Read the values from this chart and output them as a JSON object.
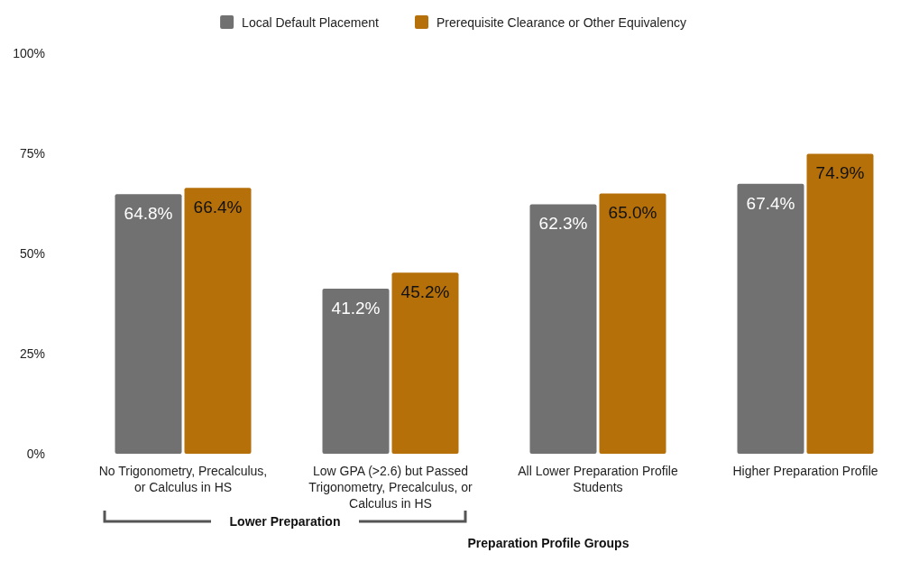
{
  "chart_data": {
    "type": "bar",
    "xlabel": "Preparation Profile Groups",
    "categories": [
      "No Trigonometry, Precalculus, or Calculus in HS",
      "Low GPA (>2.6) but Passed Trigonometry, Precalculus, or Calculus in HS",
      "All Lower Preparation Profile Students",
      "Higher Preparation Profile"
    ],
    "series": [
      {
        "name": "Local Default Placement",
        "color": "#717171",
        "values": [
          64.8,
          41.2,
          62.3,
          67.4
        ],
        "value_labels": [
          "64.8%",
          "41.2%",
          "62.3%",
          "67.4%"
        ]
      },
      {
        "name": "Prerequisite Clearance or Other Equivalency",
        "color": "#b5700a",
        "values": [
          66.4,
          45.2,
          65.0,
          74.9
        ],
        "value_labels": [
          "66.4%",
          "45.2%",
          "65.0%",
          "74.9%"
        ]
      }
    ],
    "ylim": [
      0,
      100
    ],
    "yticks": [
      {
        "value": 0,
        "label": "0%"
      },
      {
        "value": 25,
        "label": "25%"
      },
      {
        "value": 50,
        "label": "50%"
      },
      {
        "value": 75,
        "label": "75%"
      },
      {
        "value": 100,
        "label": "100%"
      }
    ],
    "grid": false,
    "legend": "top",
    "annotations": [
      "Lower Preparation"
    ]
  }
}
